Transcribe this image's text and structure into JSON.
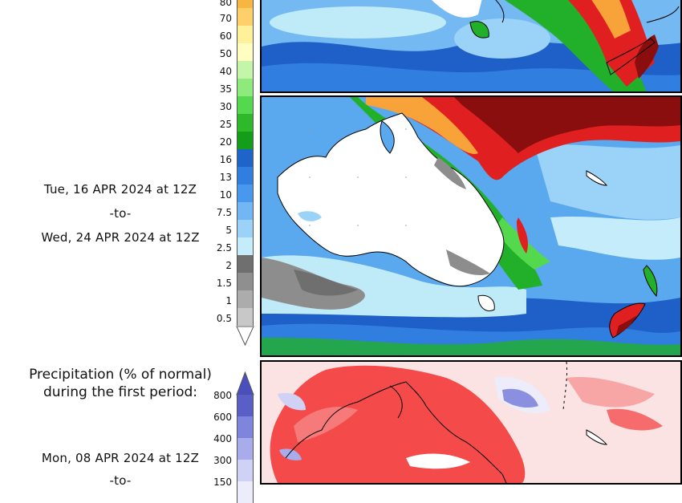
{
  "period_2": {
    "start": "Tue, 16 APR 2024 at 12Z",
    "sep": "-to-",
    "end": "Wed, 24 APR 2024 at 12Z"
  },
  "period_1": {
    "start": "Mon, 08 APR 2024 at 12Z",
    "sep": "-to-"
  },
  "precip_pct": {
    "title_line1": "Precipitation (% of normal)",
    "title_line2": "during the first period:"
  },
  "rain_scale": {
    "top_partial": "80",
    "labels": [
      "70",
      "60",
      "50",
      "40",
      "35",
      "30",
      "25",
      "20",
      "16",
      "13",
      "10",
      "7.5",
      "5",
      "2.5",
      "2",
      "1.5",
      "1",
      "0.5"
    ],
    "colors": [
      "#fed06a",
      "#fff09a",
      "#fffdc0",
      "#c5f5a8",
      "#8eea7d",
      "#54d84e",
      "#2db92a",
      "#139e1a",
      "#1f64c8",
      "#2f7ee0",
      "#4a98ee",
      "#72b6f4",
      "#9ad2f8",
      "#c4ecfb",
      "#6f6f6f",
      "#8f8f8f",
      "#acacac",
      "#c8c8c8"
    ]
  },
  "pct_scale": {
    "labels": [
      "800",
      "600",
      "400",
      "300",
      "150"
    ],
    "colors": [
      "#5a5fc8",
      "#7f84dc",
      "#a9acea",
      "#cfd1f5",
      "#ececfb"
    ]
  },
  "colors": {
    "land": "#ffffff",
    "ocean_light": "#bfeaf8",
    "ocean_mid": "#5aa8ee",
    "deep_blue": "#1f5fc8",
    "green": "#22b02a",
    "red": "#e02020",
    "dark_red": "#8a0e0e",
    "grey": "#8d8d8d",
    "pct_red": "#f44a4a",
    "pct_blue": "#8a8fe0"
  }
}
